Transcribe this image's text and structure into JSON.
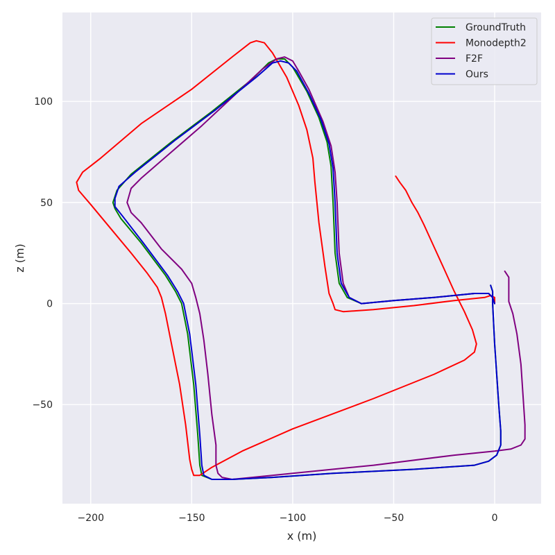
{
  "chart_data": {
    "type": "line",
    "xlabel": "x (m)",
    "ylabel": "z (m)",
    "xlim": [
      -214,
      23
    ],
    "ylim": [
      -99,
      144
    ],
    "xticks": [
      -200,
      -150,
      -100,
      -50,
      0
    ],
    "yticks": [
      -50,
      0,
      50,
      100
    ],
    "x_tick_labels": [
      "−200",
      "−150",
      "−100",
      "−50",
      "0"
    ],
    "y_tick_labels": [
      "−50",
      "0",
      "50",
      "100"
    ],
    "grid": true,
    "legend": "top-right",
    "background": "#eaeaf2",
    "series": [
      {
        "name": "GroundTruth",
        "color": "#008000",
        "points": [
          [
            -2,
            9
          ],
          [
            -1,
            6
          ],
          [
            -1,
            0
          ],
          [
            0,
            -20
          ],
          [
            2,
            -50
          ],
          [
            3,
            -63
          ],
          [
            3,
            -70
          ],
          [
            1,
            -75
          ],
          [
            -3,
            -78
          ],
          [
            -10,
            -80
          ],
          [
            -40,
            -82
          ],
          [
            -80,
            -84
          ],
          [
            -110,
            -86
          ],
          [
            -130,
            -87
          ],
          [
            -140,
            -87
          ],
          [
            -145,
            -85
          ],
          [
            -146,
            -80
          ],
          [
            -147,
            -65
          ],
          [
            -149,
            -40
          ],
          [
            -152,
            -15
          ],
          [
            -155,
            0
          ],
          [
            -158,
            6
          ],
          [
            -163,
            14
          ],
          [
            -175,
            30
          ],
          [
            -185,
            42
          ],
          [
            -188,
            47
          ],
          [
            -189,
            50
          ],
          [
            -187,
            56
          ],
          [
            -180,
            64
          ],
          [
            -160,
            80
          ],
          [
            -140,
            95
          ],
          [
            -120,
            111
          ],
          [
            -112,
            119
          ],
          [
            -108,
            121
          ],
          [
            -104,
            121
          ],
          [
            -100,
            117
          ],
          [
            -93,
            105
          ],
          [
            -87,
            92
          ],
          [
            -83,
            80
          ],
          [
            -81,
            68
          ],
          [
            -80,
            50
          ],
          [
            -79,
            25
          ],
          [
            -77,
            10
          ],
          [
            -73,
            3
          ],
          [
            -66,
            0
          ],
          [
            -50,
            1.5
          ],
          [
            -30,
            3
          ],
          [
            -10,
            5
          ],
          [
            -3,
            5
          ],
          [
            -1,
            3
          ],
          [
            0,
            0
          ]
        ]
      },
      {
        "name": "Monodepth2",
        "color": "#ff0000",
        "points": [
          [
            -49,
            63
          ],
          [
            -47,
            60
          ],
          [
            -44,
            56
          ],
          [
            -41,
            50
          ],
          [
            -38,
            45
          ],
          [
            -35,
            39
          ],
          [
            -30,
            28
          ],
          [
            -25,
            17
          ],
          [
            -20,
            6
          ],
          [
            -15,
            -4
          ],
          [
            -11,
            -13
          ],
          [
            -9,
            -20
          ],
          [
            -10,
            -24
          ],
          [
            -15,
            -28
          ],
          [
            -30,
            -35
          ],
          [
            -60,
            -47
          ],
          [
            -100,
            -62
          ],
          [
            -125,
            -73
          ],
          [
            -140,
            -81
          ],
          [
            -146,
            -85
          ],
          [
            -149,
            -85
          ],
          [
            -150,
            -82
          ],
          [
            -151,
            -77
          ],
          [
            -153,
            -60
          ],
          [
            -156,
            -40
          ],
          [
            -160,
            -20
          ],
          [
            -163,
            -5
          ],
          [
            -165,
            3
          ],
          [
            -167,
            8
          ],
          [
            -172,
            15
          ],
          [
            -180,
            25
          ],
          [
            -190,
            37
          ],
          [
            -200,
            49
          ],
          [
            -206,
            56
          ],
          [
            -207,
            60
          ],
          [
            -204,
            65
          ],
          [
            -195,
            72
          ],
          [
            -175,
            89
          ],
          [
            -150,
            106
          ],
          [
            -130,
            122
          ],
          [
            -121,
            129
          ],
          [
            -118,
            130
          ],
          [
            -114,
            129
          ],
          [
            -110,
            124
          ],
          [
            -103,
            112
          ],
          [
            -97,
            98
          ],
          [
            -93,
            86
          ],
          [
            -90,
            72
          ],
          [
            -89,
            60
          ],
          [
            -87,
            40
          ],
          [
            -84,
            18
          ],
          [
            -82,
            5
          ],
          [
            -80,
            0
          ],
          [
            -79,
            -3
          ],
          [
            -75,
            -4
          ],
          [
            -60,
            -3
          ],
          [
            -40,
            -1
          ],
          [
            -20,
            1.5
          ],
          [
            -5,
            3
          ],
          [
            -2,
            4
          ],
          [
            0,
            3
          ],
          [
            0,
            0
          ]
        ]
      },
      {
        "name": "F2F",
        "color": "#800080",
        "points": [
          [
            5,
            16
          ],
          [
            7,
            13
          ],
          [
            7,
            1
          ],
          [
            9,
            -5
          ],
          [
            11,
            -15
          ],
          [
            13,
            -30
          ],
          [
            14,
            -45
          ],
          [
            15,
            -60
          ],
          [
            15,
            -67
          ],
          [
            13,
            -70
          ],
          [
            8,
            -72
          ],
          [
            0,
            -73
          ],
          [
            -20,
            -75
          ],
          [
            -60,
            -80
          ],
          [
            -100,
            -84
          ],
          [
            -120,
            -86
          ],
          [
            -130,
            -87
          ],
          [
            -135,
            -86
          ],
          [
            -137,
            -84
          ],
          [
            -138,
            -80
          ],
          [
            -138,
            -70
          ],
          [
            -140,
            -55
          ],
          [
            -142,
            -35
          ],
          [
            -144,
            -18
          ],
          [
            -146,
            -5
          ],
          [
            -148,
            3
          ],
          [
            -150,
            10
          ],
          [
            -155,
            17
          ],
          [
            -165,
            27
          ],
          [
            -175,
            40
          ],
          [
            -180,
            45
          ],
          [
            -182,
            50
          ],
          [
            -180,
            57
          ],
          [
            -175,
            62
          ],
          [
            -160,
            75
          ],
          [
            -145,
            88
          ],
          [
            -130,
            102
          ],
          [
            -115,
            116
          ],
          [
            -108,
            121
          ],
          [
            -104,
            122
          ],
          [
            -100,
            120
          ],
          [
            -97,
            115
          ],
          [
            -92,
            106
          ],
          [
            -85,
            90
          ],
          [
            -81,
            78
          ],
          [
            -79,
            65
          ],
          [
            -78,
            50
          ],
          [
            -77,
            25
          ],
          [
            -75,
            10
          ],
          [
            -72,
            3
          ],
          [
            -66,
            0
          ],
          [
            -50,
            1.5
          ],
          [
            -30,
            3
          ],
          [
            -10,
            5
          ],
          [
            -3,
            5
          ],
          [
            -1,
            3
          ],
          [
            0,
            0
          ]
        ]
      },
      {
        "name": "Ours",
        "color": "#0000cd",
        "points": [
          [
            -2,
            9
          ],
          [
            -1,
            6
          ],
          [
            -1,
            0
          ],
          [
            0,
            -20
          ],
          [
            2,
            -50
          ],
          [
            3,
            -63
          ],
          [
            3,
            -70
          ],
          [
            1,
            -75
          ],
          [
            -3,
            -78
          ],
          [
            -10,
            -80
          ],
          [
            -40,
            -82
          ],
          [
            -80,
            -84
          ],
          [
            -110,
            -86
          ],
          [
            -130,
            -87
          ],
          [
            -140,
            -87
          ],
          [
            -144,
            -85
          ],
          [
            -145,
            -80
          ],
          [
            -146,
            -65
          ],
          [
            -148,
            -40
          ],
          [
            -151,
            -15
          ],
          [
            -154,
            0
          ],
          [
            -157,
            6
          ],
          [
            -162,
            14
          ],
          [
            -174,
            30
          ],
          [
            -184,
            43
          ],
          [
            -188,
            48
          ],
          [
            -188,
            52
          ],
          [
            -186,
            58
          ],
          [
            -178,
            65
          ],
          [
            -158,
            81
          ],
          [
            -138,
            96
          ],
          [
            -118,
            112
          ],
          [
            -110,
            119
          ],
          [
            -106,
            120
          ],
          [
            -102,
            119
          ],
          [
            -98,
            115
          ],
          [
            -92,
            104
          ],
          [
            -86,
            91
          ],
          [
            -82,
            79
          ],
          [
            -80,
            67
          ],
          [
            -79,
            50
          ],
          [
            -78,
            25
          ],
          [
            -76,
            10
          ],
          [
            -72,
            3
          ],
          [
            -66,
            0
          ],
          [
            -50,
            1.5
          ],
          [
            -30,
            3
          ],
          [
            -10,
            5
          ],
          [
            -3,
            5
          ],
          [
            -1,
            3
          ],
          [
            0,
            0
          ]
        ]
      }
    ]
  }
}
